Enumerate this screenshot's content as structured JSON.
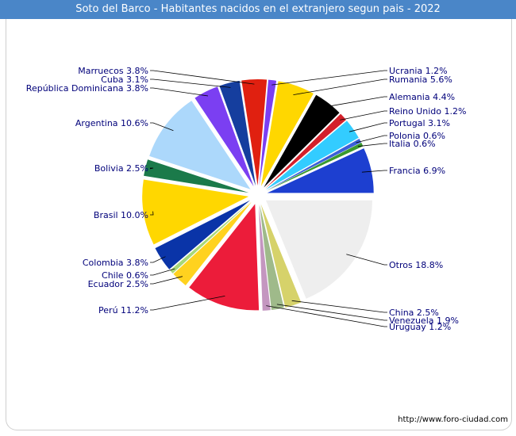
{
  "chart_data": {
    "type": "pie",
    "title": "Soto del Barco - Habitantes nacidos en el extranjero segun pais - 2022",
    "source": "http://www.foro-ciudad.com",
    "slices": [
      {
        "label": "Francia",
        "value": 6.9,
        "display": "Francia 6.9%",
        "color": "#1d3fd0"
      },
      {
        "label": "Italia",
        "value": 0.6,
        "display": "Italia 0.6%",
        "color": "#3a9a2e"
      },
      {
        "label": "Polonia",
        "value": 0.6,
        "display": "Polonia 0.6%",
        "color": "#3b5fd8"
      },
      {
        "label": "Portugal",
        "value": 3.1,
        "display": "Portugal 3.1%",
        "color": "#33ccff"
      },
      {
        "label": "Reino Unido",
        "value": 1.2,
        "display": "Reino Unido 1.2%",
        "color": "#d4202a"
      },
      {
        "label": "Alemania",
        "value": 4.4,
        "display": "Alemania 4.4%",
        "color": "#000000"
      },
      {
        "label": "Rumania",
        "value": 5.6,
        "display": "Rumania 5.6%",
        "color": "#ffd700"
      },
      {
        "label": "Ucrania",
        "value": 1.2,
        "display": "Ucrania 1.2%",
        "color": "#7b3ff2"
      },
      {
        "label": "Marruecos",
        "value": 3.8,
        "display": "Marruecos 3.8%",
        "color": "#e02010"
      },
      {
        "label": "Cuba",
        "value": 3.1,
        "display": "Cuba 3.1%",
        "color": "#153e9e"
      },
      {
        "label": "República Dominicana",
        "value": 3.8,
        "display": "República Dominicana 3.8%",
        "color": "#7b3ff2"
      },
      {
        "label": "Argentina",
        "value": 10.6,
        "display": "Argentina 10.6%",
        "color": "#acd8fb"
      },
      {
        "label": "Bolivia",
        "value": 2.5,
        "display": "Bolivia 2.5%",
        "color": "#1b7a4a"
      },
      {
        "label": "Brasil",
        "value": 10.0,
        "display": "Brasil 10.0%",
        "color": "#ffd700"
      },
      {
        "label": "Colombia",
        "value": 3.8,
        "display": "Colombia 3.8%",
        "color": "#0a34a8"
      },
      {
        "label": "Chile",
        "value": 0.6,
        "display": "Chile 0.6%",
        "color": "#a8d878"
      },
      {
        "label": "Ecuador",
        "value": 2.5,
        "display": "Ecuador 2.5%",
        "color": "#ffd21f"
      },
      {
        "label": "Perú",
        "value": 11.2,
        "display": "Perú 11.2%",
        "color": "#ec1c3a"
      },
      {
        "label": "Uruguay",
        "value": 1.2,
        "display": "Uruguay 1.2%",
        "color": "#c496c0"
      },
      {
        "label": "Venezuela",
        "value": 1.9,
        "display": "Venezuela 1.9%",
        "color": "#9fba8a"
      },
      {
        "label": "China",
        "value": 2.5,
        "display": "China 2.5%",
        "color": "#d6d26a"
      },
      {
        "label": "Otros",
        "value": 18.8,
        "display": "Otros 18.8%",
        "color": "#eeeeee"
      }
    ]
  }
}
